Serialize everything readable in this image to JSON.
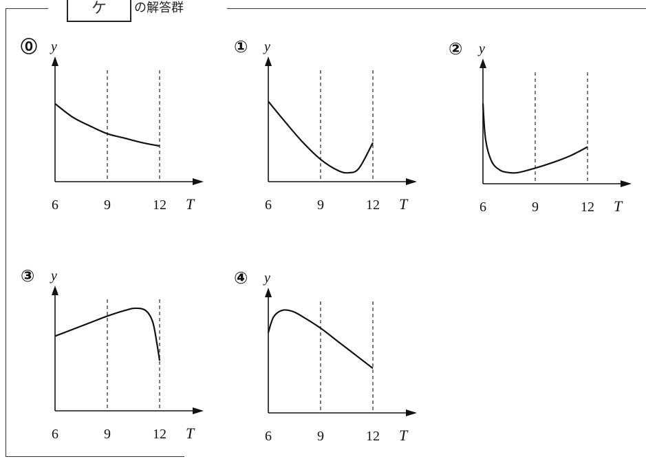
{
  "header": {
    "box_label": "ケ",
    "title": "の解答群"
  },
  "graphs": [
    {
      "marker": "⓪",
      "y_label": "y",
      "x_label": "T",
      "ticks": [
        "6",
        "9",
        "12"
      ],
      "curve": [
        [
          6,
          0.7
        ],
        [
          7,
          0.58
        ],
        [
          8,
          0.5
        ],
        [
          9,
          0.43
        ],
        [
          10,
          0.39
        ],
        [
          11,
          0.35
        ],
        [
          12,
          0.32
        ]
      ]
    },
    {
      "marker": "①",
      "y_label": "y",
      "x_label": "T",
      "ticks": [
        "6",
        "9",
        "12"
      ],
      "curve": [
        [
          6,
          0.72
        ],
        [
          7,
          0.53
        ],
        [
          8,
          0.35
        ],
        [
          9,
          0.2
        ],
        [
          10,
          0.1
        ],
        [
          10.6,
          0.08
        ],
        [
          11.2,
          0.12
        ],
        [
          12,
          0.35
        ]
      ]
    },
    {
      "marker": "②",
      "y_label": "y",
      "x_label": "T",
      "ticks": [
        "6",
        "9",
        "12"
      ],
      "curve": [
        [
          6,
          0.72
        ],
        [
          6.15,
          0.4
        ],
        [
          6.5,
          0.2
        ],
        [
          7,
          0.12
        ],
        [
          7.5,
          0.1
        ],
        [
          8,
          0.1
        ],
        [
          9,
          0.14
        ],
        [
          10,
          0.19
        ],
        [
          11,
          0.25
        ],
        [
          12,
          0.33
        ]
      ]
    },
    {
      "marker": "③",
      "y_label": "y",
      "x_label": "T",
      "ticks": [
        "6",
        "9",
        "12"
      ],
      "curve": [
        [
          6,
          0.67
        ],
        [
          7,
          0.73
        ],
        [
          8,
          0.79
        ],
        [
          9,
          0.85
        ],
        [
          10,
          0.9
        ],
        [
          10.6,
          0.92
        ],
        [
          11.2,
          0.9
        ],
        [
          11.6,
          0.8
        ],
        [
          11.85,
          0.6
        ],
        [
          12,
          0.45
        ]
      ]
    },
    {
      "marker": "④",
      "y_label": "y",
      "x_label": "T",
      "ticks": [
        "6",
        "9",
        "12"
      ],
      "curve": [
        [
          6,
          0.72
        ],
        [
          6.3,
          0.86
        ],
        [
          6.8,
          0.92
        ],
        [
          7.4,
          0.91
        ],
        [
          8,
          0.86
        ],
        [
          9,
          0.76
        ],
        [
          10,
          0.64
        ],
        [
          11,
          0.52
        ],
        [
          12,
          0.4
        ]
      ]
    }
  ]
}
